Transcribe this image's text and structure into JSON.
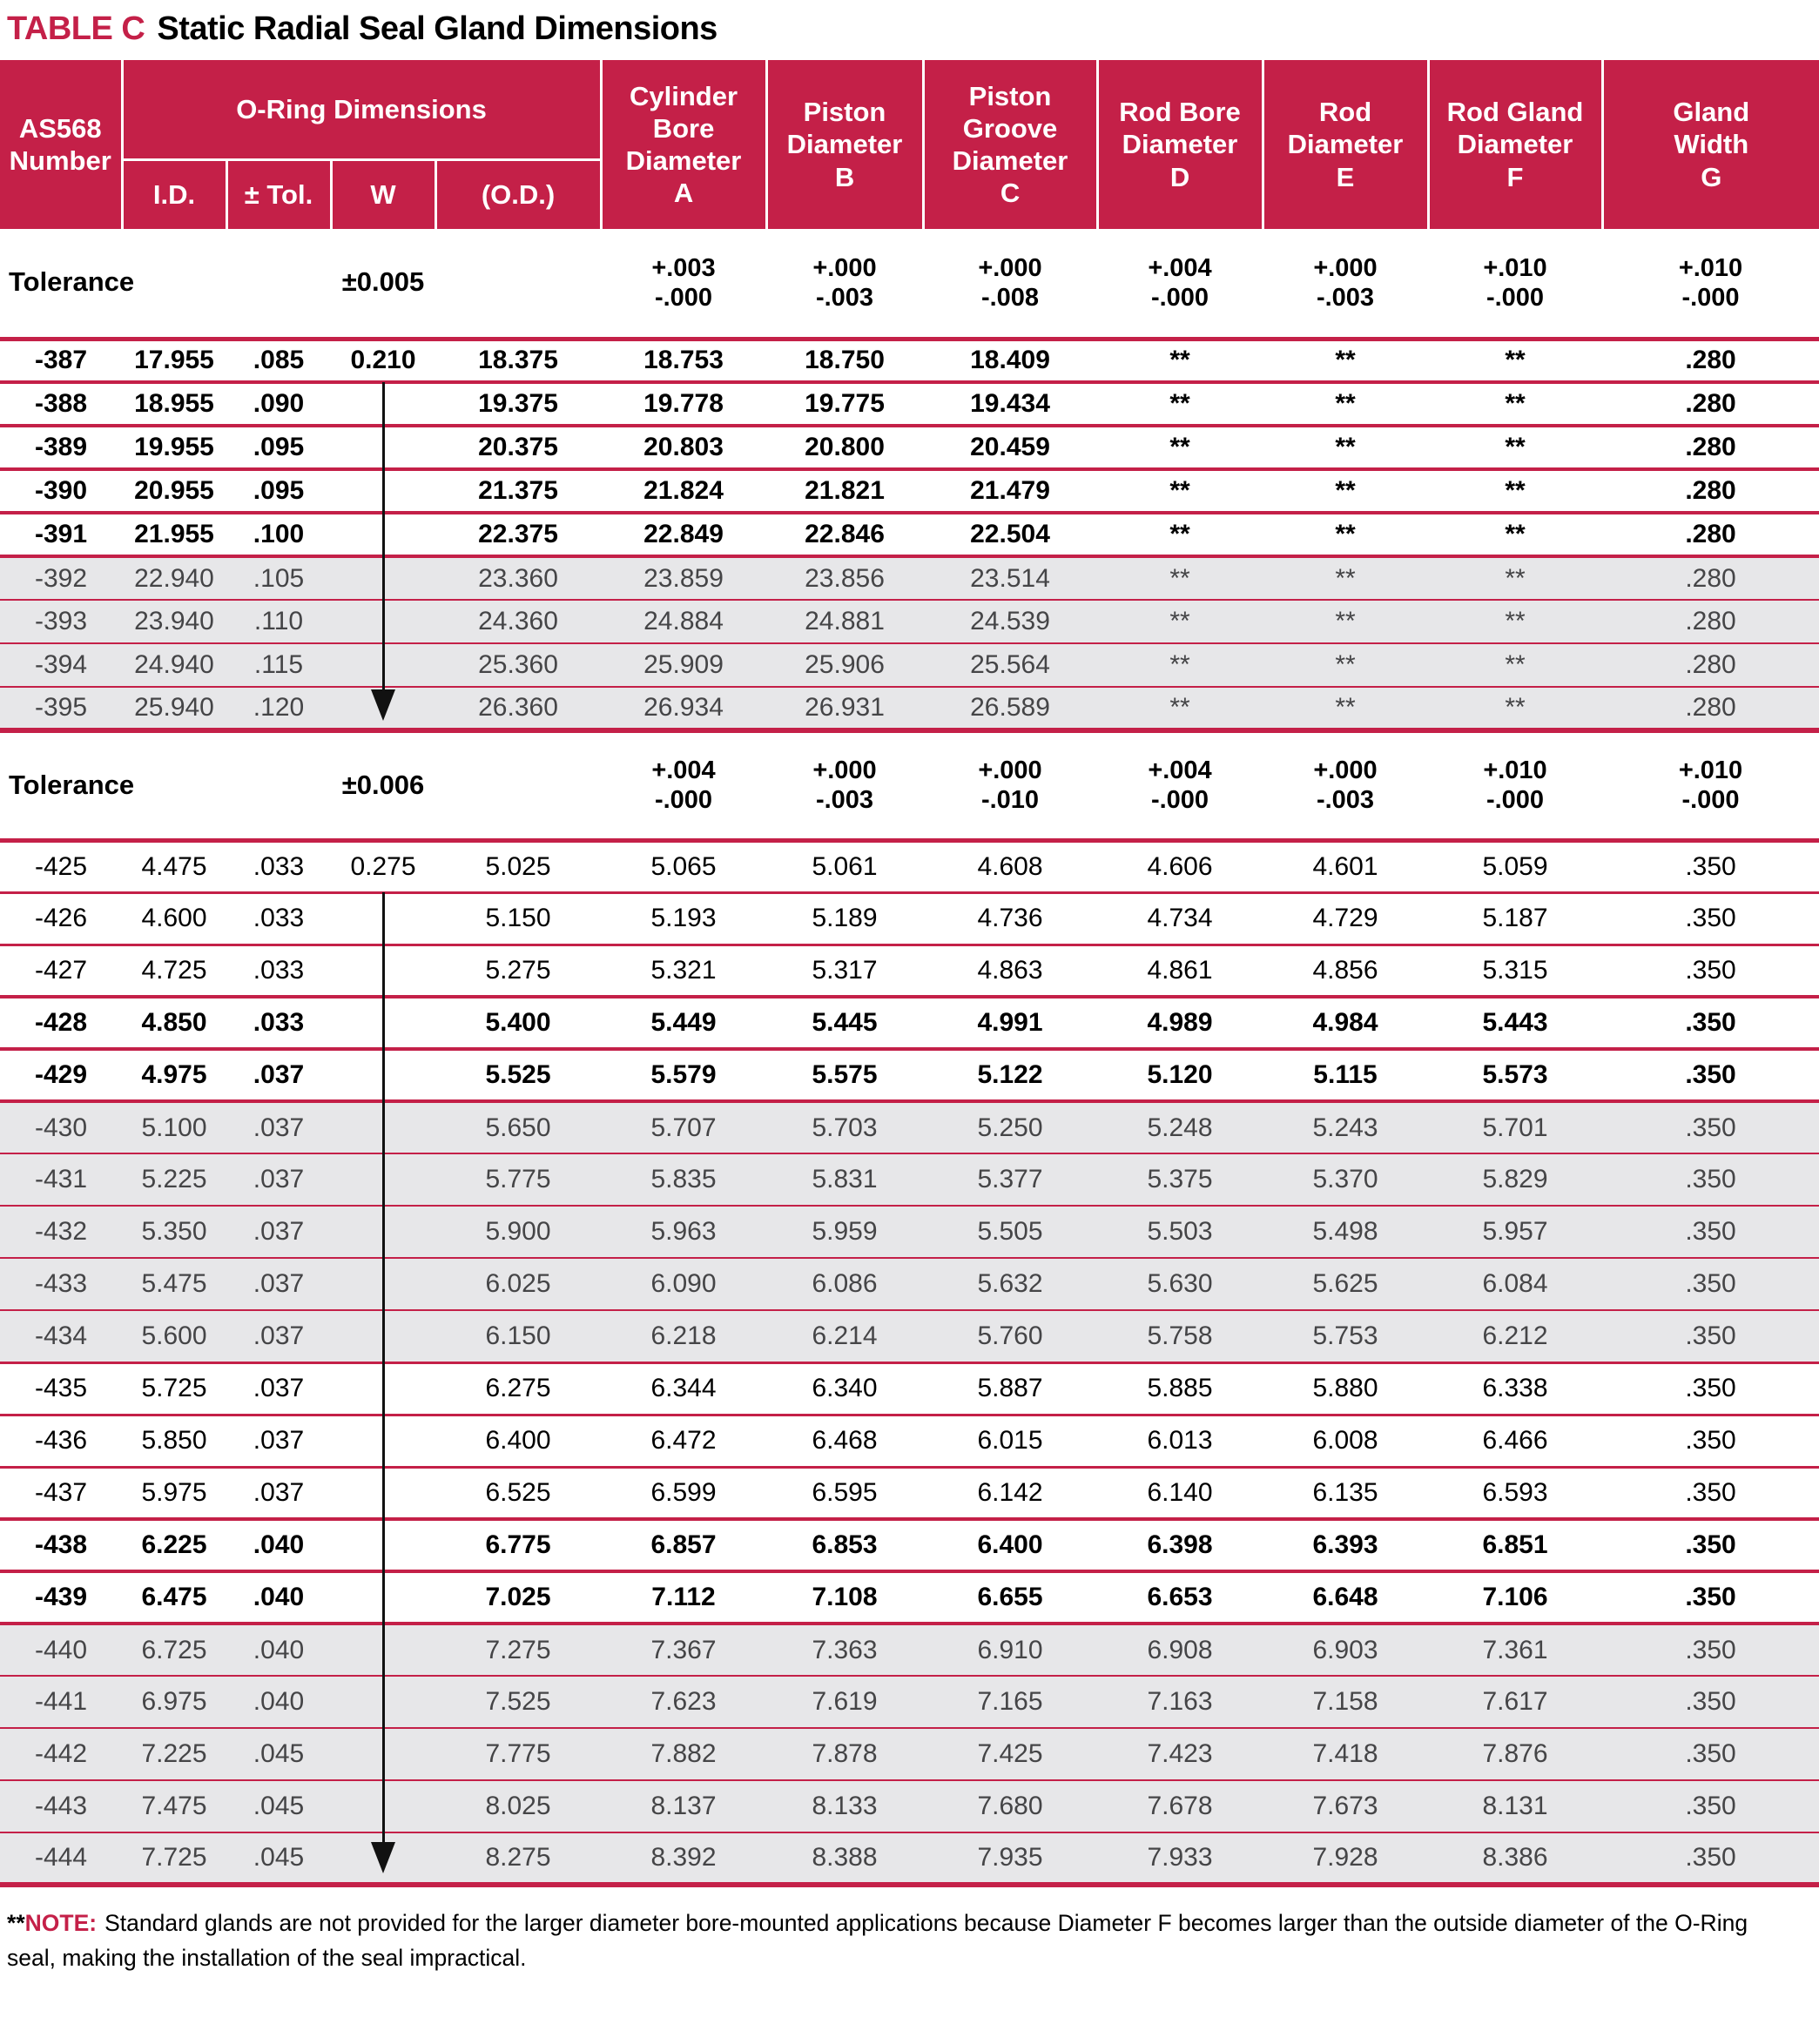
{
  "title": {
    "label": "TABLE C",
    "text": "Static Radial Seal Gland Dimensions"
  },
  "colors": {
    "accent": "#c42048",
    "shaded_bg": "#e7e7e9",
    "shaded_text": "#454547"
  },
  "header": {
    "as568": "AS568\nNumber",
    "oring_group": "O-Ring Dimensions",
    "oring_subs": [
      "I.D.",
      "± Tol.",
      "W",
      "(O.D.)"
    ],
    "value_columns": [
      "Cylinder\nBore\nDiameter\nA",
      "Piston\nDiameter\nB",
      "Piston\nGroove\nDiameter\nC",
      "Rod Bore\nDiameter\nD",
      "Rod\nDiameter\nE",
      "Rod Gland\nDiameter\nF",
      "Gland\nWidth\nG"
    ]
  },
  "sections": [
    {
      "tolerance": {
        "label": "Tolerance",
        "oring_tol": "±0.005",
        "values": [
          "+.003\n-.000",
          "+.000\n-.003",
          "+.000\n-.008",
          "+.004\n-.000",
          "+.000\n-.003",
          "+.010\n-.000",
          "+.010\n-.000"
        ]
      },
      "rows": [
        {
          "num": "-387",
          "id": "17.955",
          "tol": ".085",
          "w": "0.210",
          "od": "18.375",
          "a": "18.753",
          "b": "18.750",
          "c": "18.409",
          "d": "**",
          "e": "**",
          "f": "**",
          "g": ".280",
          "emphasis": true,
          "shaded": false
        },
        {
          "num": "-388",
          "id": "18.955",
          "tol": ".090",
          "w": "",
          "od": "19.375",
          "a": "19.778",
          "b": "19.775",
          "c": "19.434",
          "d": "**",
          "e": "**",
          "f": "**",
          "g": ".280",
          "emphasis": true,
          "shaded": false
        },
        {
          "num": "-389",
          "id": "19.955",
          "tol": ".095",
          "w": "",
          "od": "20.375",
          "a": "20.803",
          "b": "20.800",
          "c": "20.459",
          "d": "**",
          "e": "**",
          "f": "**",
          "g": ".280",
          "emphasis": true,
          "shaded": false
        },
        {
          "num": "-390",
          "id": "20.955",
          "tol": ".095",
          "w": "",
          "od": "21.375",
          "a": "21.824",
          "b": "21.821",
          "c": "21.479",
          "d": "**",
          "e": "**",
          "f": "**",
          "g": ".280",
          "emphasis": true,
          "shaded": false
        },
        {
          "num": "-391",
          "id": "21.955",
          "tol": ".100",
          "w": "",
          "od": "22.375",
          "a": "22.849",
          "b": "22.846",
          "c": "22.504",
          "d": "**",
          "e": "**",
          "f": "**",
          "g": ".280",
          "emphasis": true,
          "shaded": false
        },
        {
          "num": "-392",
          "id": "22.940",
          "tol": ".105",
          "w": "",
          "od": "23.360",
          "a": "23.859",
          "b": "23.856",
          "c": "23.514",
          "d": "**",
          "e": "**",
          "f": "**",
          "g": ".280",
          "emphasis": false,
          "shaded": true
        },
        {
          "num": "-393",
          "id": "23.940",
          "tol": ".110",
          "w": "",
          "od": "24.360",
          "a": "24.884",
          "b": "24.881",
          "c": "24.539",
          "d": "**",
          "e": "**",
          "f": "**",
          "g": ".280",
          "emphasis": false,
          "shaded": true
        },
        {
          "num": "-394",
          "id": "24.940",
          "tol": ".115",
          "w": "",
          "od": "25.360",
          "a": "25.909",
          "b": "25.906",
          "c": "25.564",
          "d": "**",
          "e": "**",
          "f": "**",
          "g": ".280",
          "emphasis": false,
          "shaded": true
        },
        {
          "num": "-395",
          "id": "25.940",
          "tol": ".120",
          "w": "",
          "od": "26.360",
          "a": "26.934",
          "b": "26.931",
          "c": "26.589",
          "d": "**",
          "e": "**",
          "f": "**",
          "g": ".280",
          "emphasis": false,
          "shaded": true
        }
      ]
    },
    {
      "tolerance": {
        "label": "Tolerance",
        "oring_tol": "±0.006",
        "values": [
          "+.004\n-.000",
          "+.000\n-.003",
          "+.000\n-.010",
          "+.004\n-.000",
          "+.000\n-.003",
          "+.010\n-.000",
          "+.010\n-.000"
        ]
      },
      "rows": [
        {
          "num": "-425",
          "id": "4.475",
          "tol": ".033",
          "w": "0.275",
          "od": "5.025",
          "a": "5.065",
          "b": "5.061",
          "c": "4.608",
          "d": "4.606",
          "e": "4.601",
          "f": "5.059",
          "g": ".350",
          "emphasis": false,
          "shaded": false
        },
        {
          "num": "-426",
          "id": "4.600",
          "tol": ".033",
          "w": "",
          "od": "5.150",
          "a": "5.193",
          "b": "5.189",
          "c": "4.736",
          "d": "4.734",
          "e": "4.729",
          "f": "5.187",
          "g": ".350",
          "emphasis": false,
          "shaded": false
        },
        {
          "num": "-427",
          "id": "4.725",
          "tol": ".033",
          "w": "",
          "od": "5.275",
          "a": "5.321",
          "b": "5.317",
          "c": "4.863",
          "d": "4.861",
          "e": "4.856",
          "f": "5.315",
          "g": ".350",
          "emphasis": false,
          "shaded": false
        },
        {
          "num": "-428",
          "id": "4.850",
          "tol": ".033",
          "w": "",
          "od": "5.400",
          "a": "5.449",
          "b": "5.445",
          "c": "4.991",
          "d": "4.989",
          "e": "4.984",
          "f": "5.443",
          "g": ".350",
          "emphasis": true,
          "shaded": false
        },
        {
          "num": "-429",
          "id": "4.975",
          "tol": ".037",
          "w": "",
          "od": "5.525",
          "a": "5.579",
          "b": "5.575",
          "c": "5.122",
          "d": "5.120",
          "e": "5.115",
          "f": "5.573",
          "g": ".350",
          "emphasis": true,
          "shaded": false
        },
        {
          "num": "-430",
          "id": "5.100",
          "tol": ".037",
          "w": "",
          "od": "5.650",
          "a": "5.707",
          "b": "5.703",
          "c": "5.250",
          "d": "5.248",
          "e": "5.243",
          "f": "5.701",
          "g": ".350",
          "emphasis": false,
          "shaded": true
        },
        {
          "num": "-431",
          "id": "5.225",
          "tol": ".037",
          "w": "",
          "od": "5.775",
          "a": "5.835",
          "b": "5.831",
          "c": "5.377",
          "d": "5.375",
          "e": "5.370",
          "f": "5.829",
          "g": ".350",
          "emphasis": false,
          "shaded": true
        },
        {
          "num": "-432",
          "id": "5.350",
          "tol": ".037",
          "w": "",
          "od": "5.900",
          "a": "5.963",
          "b": "5.959",
          "c": "5.505",
          "d": "5.503",
          "e": "5.498",
          "f": "5.957",
          "g": ".350",
          "emphasis": false,
          "shaded": true
        },
        {
          "num": "-433",
          "id": "5.475",
          "tol": ".037",
          "w": "",
          "od": "6.025",
          "a": "6.090",
          "b": "6.086",
          "c": "5.632",
          "d": "5.630",
          "e": "5.625",
          "f": "6.084",
          "g": ".350",
          "emphasis": false,
          "shaded": true
        },
        {
          "num": "-434",
          "id": "5.600",
          "tol": ".037",
          "w": "",
          "od": "6.150",
          "a": "6.218",
          "b": "6.214",
          "c": "5.760",
          "d": "5.758",
          "e": "5.753",
          "f": "6.212",
          "g": ".350",
          "emphasis": false,
          "shaded": true
        },
        {
          "num": "-435",
          "id": "5.725",
          "tol": ".037",
          "w": "",
          "od": "6.275",
          "a": "6.344",
          "b": "6.340",
          "c": "5.887",
          "d": "5.885",
          "e": "5.880",
          "f": "6.338",
          "g": ".350",
          "emphasis": false,
          "shaded": false
        },
        {
          "num": "-436",
          "id": "5.850",
          "tol": ".037",
          "w": "",
          "od": "6.400",
          "a": "6.472",
          "b": "6.468",
          "c": "6.015",
          "d": "6.013",
          "e": "6.008",
          "f": "6.466",
          "g": ".350",
          "emphasis": false,
          "shaded": false
        },
        {
          "num": "-437",
          "id": "5.975",
          "tol": ".037",
          "w": "",
          "od": "6.525",
          "a": "6.599",
          "b": "6.595",
          "c": "6.142",
          "d": "6.140",
          "e": "6.135",
          "f": "6.593",
          "g": ".350",
          "emphasis": false,
          "shaded": false
        },
        {
          "num": "-438",
          "id": "6.225",
          "tol": ".040",
          "w": "",
          "od": "6.775",
          "a": "6.857",
          "b": "6.853",
          "c": "6.400",
          "d": "6.398",
          "e": "6.393",
          "f": "6.851",
          "g": ".350",
          "emphasis": true,
          "shaded": false
        },
        {
          "num": "-439",
          "id": "6.475",
          "tol": ".040",
          "w": "",
          "od": "7.025",
          "a": "7.112",
          "b": "7.108",
          "c": "6.655",
          "d": "6.653",
          "e": "6.648",
          "f": "7.106",
          "g": ".350",
          "emphasis": true,
          "shaded": false
        },
        {
          "num": "-440",
          "id": "6.725",
          "tol": ".040",
          "w": "",
          "od": "7.275",
          "a": "7.367",
          "b": "7.363",
          "c": "6.910",
          "d": "6.908",
          "e": "6.903",
          "f": "7.361",
          "g": ".350",
          "emphasis": false,
          "shaded": true
        },
        {
          "num": "-441",
          "id": "6.975",
          "tol": ".040",
          "w": "",
          "od": "7.525",
          "a": "7.623",
          "b": "7.619",
          "c": "7.165",
          "d": "7.163",
          "e": "7.158",
          "f": "7.617",
          "g": ".350",
          "emphasis": false,
          "shaded": true
        },
        {
          "num": "-442",
          "id": "7.225",
          "tol": ".045",
          "w": "",
          "od": "7.775",
          "a": "7.882",
          "b": "7.878",
          "c": "7.425",
          "d": "7.423",
          "e": "7.418",
          "f": "7.876",
          "g": ".350",
          "emphasis": false,
          "shaded": true
        },
        {
          "num": "-443",
          "id": "7.475",
          "tol": ".045",
          "w": "",
          "od": "8.025",
          "a": "8.137",
          "b": "8.133",
          "c": "7.680",
          "d": "7.678",
          "e": "7.673",
          "f": "8.131",
          "g": ".350",
          "emphasis": false,
          "shaded": true
        },
        {
          "num": "-444",
          "id": "7.725",
          "tol": ".045",
          "w": "",
          "od": "8.275",
          "a": "8.392",
          "b": "8.388",
          "c": "7.935",
          "d": "7.933",
          "e": "7.928",
          "f": "8.386",
          "g": ".350",
          "emphasis": false,
          "shaded": true
        }
      ]
    }
  ],
  "note": {
    "stars": "**",
    "label": "NOTE:",
    "text": "Standard glands are not provided for the larger diameter bore-mounted applications because Diameter F becomes larger than the outside diameter of the O-Ring seal, making the installation of the seal impractical."
  }
}
